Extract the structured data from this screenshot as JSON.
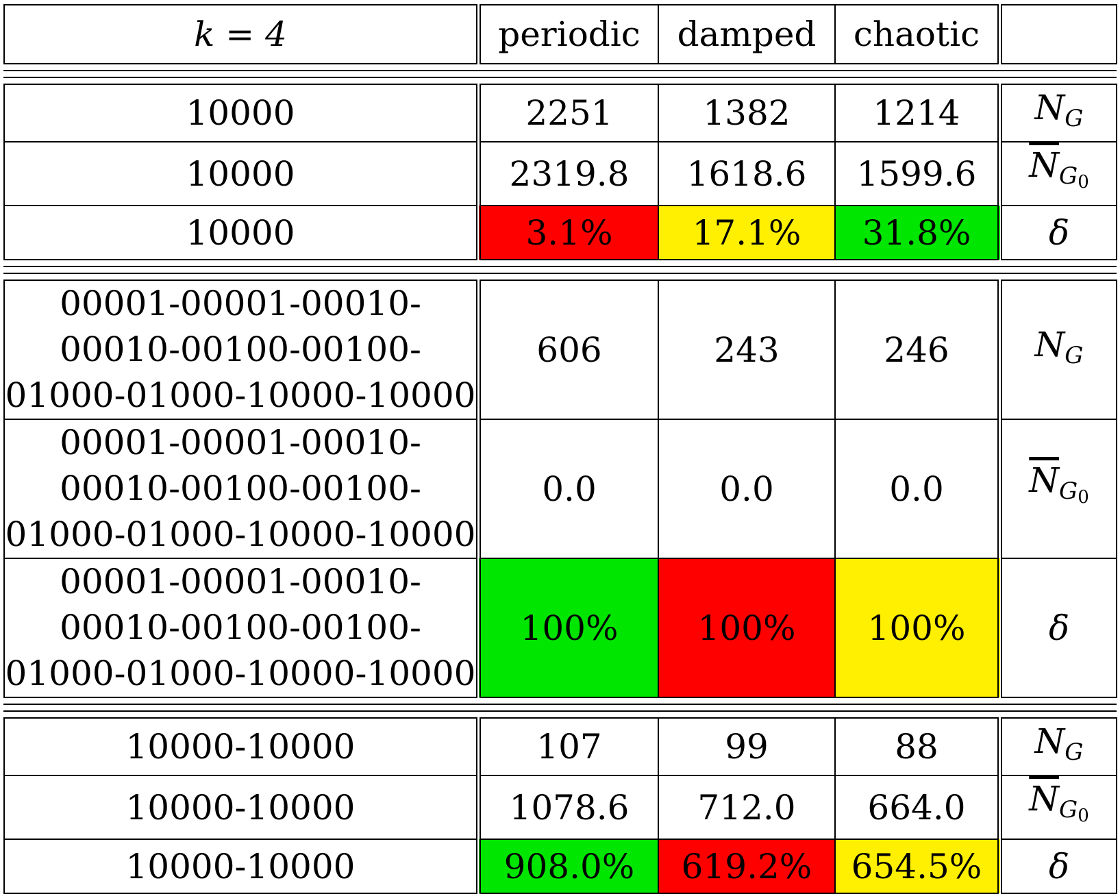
{
  "header": {
    "label": "k = 4",
    "columns": [
      "periodic",
      "damped",
      "chaotic",
      ""
    ]
  },
  "colors": {
    "red": "#ff0000",
    "yellow": "#ffef00",
    "green": "#00e600"
  },
  "blocks": [
    {
      "rows": [
        {
          "label": "10000",
          "values": [
            "2251",
            "1382",
            "1214"
          ],
          "symbol": "N_G",
          "fills": [
            "",
            "",
            ""
          ]
        },
        {
          "label": "10000",
          "values": [
            "2319.8",
            "1618.6",
            "1599.6"
          ],
          "symbol": "N̄_G0",
          "fills": [
            "",
            "",
            ""
          ]
        },
        {
          "label": "10000",
          "values": [
            "3.1%",
            "17.1%",
            "31.8%"
          ],
          "symbol": "δ",
          "fills": [
            "red",
            "yellow",
            "green"
          ]
        }
      ]
    },
    {
      "rows": [
        {
          "label": "00001-00001-00010-\n00010-00100-00100-\n01000-01000-10000-10000",
          "values": [
            "606",
            "243",
            "246"
          ],
          "symbol": "N_G",
          "fills": [
            "",
            "",
            ""
          ]
        },
        {
          "label": "00001-00001-00010-\n00010-00100-00100-\n01000-01000-10000-10000",
          "values": [
            "0.0",
            "0.0",
            "0.0"
          ],
          "symbol": "N̄_G0",
          "fills": [
            "",
            "",
            ""
          ]
        },
        {
          "label": "00001-00001-00010-\n00010-00100-00100-\n01000-01000-10000-10000",
          "values": [
            "100%",
            "100%",
            "100%"
          ],
          "symbol": "δ",
          "fills": [
            "green",
            "red",
            "yellow"
          ]
        }
      ]
    },
    {
      "rows": [
        {
          "label": "10000-10000",
          "values": [
            "107",
            "99",
            "88"
          ],
          "symbol": "N_G",
          "fills": [
            "",
            "",
            ""
          ]
        },
        {
          "label": "10000-10000",
          "values": [
            "1078.6",
            "712.0",
            "664.0"
          ],
          "symbol": "N̄_G0",
          "fills": [
            "",
            "",
            ""
          ]
        },
        {
          "label": "10000-10000",
          "values": [
            "908.0%",
            "619.2%",
            "654.5%"
          ],
          "symbol": "δ",
          "fills": [
            "green",
            "red",
            "yellow"
          ]
        }
      ]
    }
  ]
}
